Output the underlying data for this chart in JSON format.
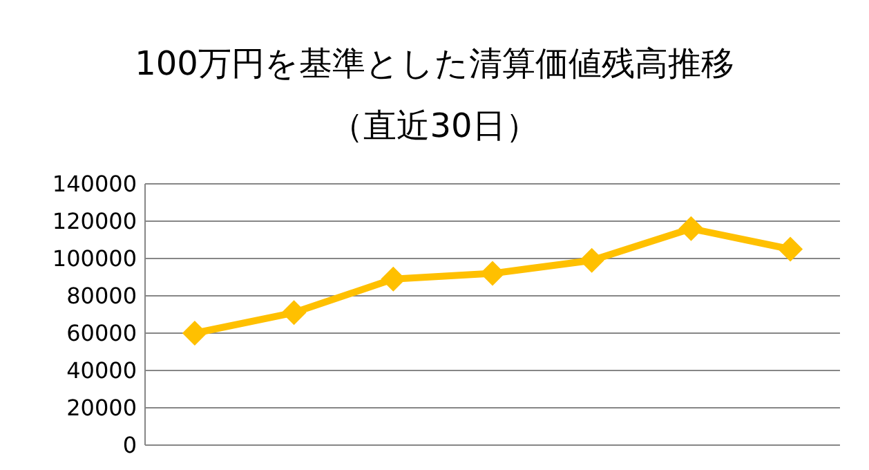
{
  "chart_data": {
    "type": "line",
    "title": "100万円を基準とした清算価値残高推移",
    "subtitle": "（直近30日）",
    "categories": [
      null,
      null,
      null,
      null,
      null,
      null,
      null
    ],
    "series": [
      {
        "color": "#ffc000",
        "values": [
          60000,
          71000,
          89000,
          92000,
          99000,
          116000,
          105000
        ]
      }
    ],
    "ylim": [
      0,
      140000
    ],
    "yticks": [
      0,
      20000,
      40000,
      60000,
      80000,
      100000,
      120000,
      140000
    ],
    "grid": "y",
    "marker": "diamond",
    "line_style": "solid"
  }
}
